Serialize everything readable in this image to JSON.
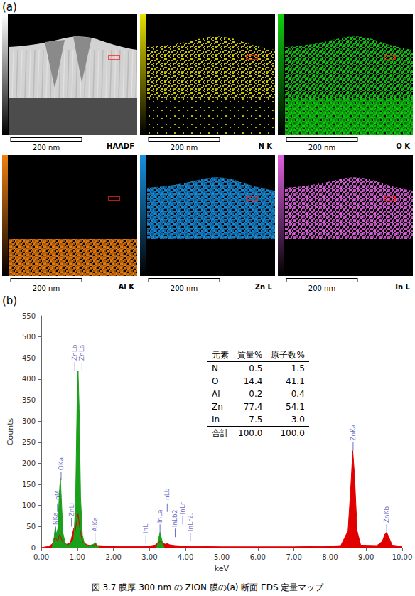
{
  "panel_a": {
    "label": "(a)",
    "scale_bar": "200 nm",
    "panels": [
      {
        "label": "HAADF",
        "color": "#ffffff"
      },
      {
        "label": "N K",
        "color": "#e8e000"
      },
      {
        "label": "O K",
        "color": "#10d010"
      },
      {
        "label": "Al K",
        "color": "#f08010"
      },
      {
        "label": "Zn L",
        "color": "#1890e0"
      },
      {
        "label": "In L",
        "color": "#e060e0"
      }
    ]
  },
  "chart_data": {
    "label": "(b)",
    "type": "area",
    "x_label": "keV",
    "y_label": "Counts",
    "xlim": [
      0,
      10
    ],
    "xticks": [
      {
        "value": 0,
        "label": "0.00"
      },
      {
        "value": 1,
        "label": "1.00"
      },
      {
        "value": 2,
        "label": "2.00"
      },
      {
        "value": 3,
        "label": "3.00"
      },
      {
        "value": 4,
        "label": "4.00"
      },
      {
        "value": 5,
        "label": "5.00"
      },
      {
        "value": 6,
        "label": "6.00"
      },
      {
        "value": 7,
        "label": "7.00"
      },
      {
        "value": 8,
        "label": "8.00"
      },
      {
        "value": 9,
        "label": "9.00"
      },
      {
        "value": 10,
        "label": "10.00"
      }
    ],
    "ylim": [
      0,
      550
    ],
    "yticks": [
      0,
      50,
      100,
      150,
      200,
      250,
      300,
      350,
      400,
      450,
      500,
      550
    ],
    "grid": false,
    "series": [
      {
        "color": "#e00000",
        "x": [
          0.0,
          0.2,
          0.3,
          0.34,
          0.38,
          0.42,
          0.46,
          0.5,
          0.54,
          0.6,
          0.7,
          0.8,
          0.86,
          0.9,
          0.94,
          0.98,
          1.02,
          1.08,
          1.15,
          1.3,
          1.45,
          1.5,
          1.55,
          1.8,
          2.2,
          2.8,
          3.0,
          3.15,
          3.25,
          3.3,
          3.36,
          3.45,
          3.5,
          3.55,
          3.7,
          3.9,
          4.2,
          5.0,
          6.0,
          7.0,
          7.8,
          8.3,
          8.5,
          8.58,
          8.63,
          8.68,
          8.75,
          8.85,
          9.3,
          9.45,
          9.52,
          9.57,
          9.63,
          9.72,
          10.0
        ],
        "values": [
          0,
          3,
          8,
          15,
          25,
          20,
          15,
          30,
          25,
          12,
          8,
          10,
          30,
          45,
          40,
          60,
          80,
          40,
          12,
          6,
          5,
          8,
          5,
          4,
          3,
          3,
          4,
          6,
          12,
          15,
          10,
          8,
          10,
          7,
          5,
          4,
          3,
          2,
          2,
          2,
          3,
          5,
          40,
          150,
          230,
          170,
          40,
          6,
          5,
          15,
          32,
          36,
          25,
          6,
          3
        ]
      },
      {
        "color": "#1aa01a",
        "x": [
          0.3,
          0.36,
          0.39,
          0.42,
          0.46,
          0.5,
          0.53,
          0.56,
          0.6,
          0.66,
          0.72,
          0.8,
          0.9,
          0.95,
          1.0,
          1.02,
          1.05,
          1.09,
          1.14,
          1.2,
          1.3,
          1.45,
          1.49,
          1.53,
          1.6,
          2.4,
          3.2,
          3.26,
          3.29,
          3.33,
          3.4
        ],
        "values": [
          0,
          25,
          50,
          32,
          45,
          125,
          165,
          110,
          35,
          12,
          5,
          8,
          20,
          100,
          380,
          420,
          330,
          120,
          30,
          8,
          4,
          8,
          13,
          8,
          0,
          null,
          0,
          25,
          36,
          22,
          0
        ]
      }
    ],
    "annotations": [
      {
        "text": "NKa",
        "x": 0.39,
        "y": 40
      },
      {
        "text": "InM",
        "x": 0.45,
        "y": 95
      },
      {
        "text": "OKa",
        "x": 0.55,
        "y": 170
      },
      {
        "text": "ZnLl",
        "x": 0.84,
        "y": 60
      },
      {
        "text": "ZnLb",
        "x": 0.93,
        "y": 430
      },
      {
        "text": "ZnLa",
        "x": 1.13,
        "y": 430
      },
      {
        "text": "AlKa",
        "x": 1.49,
        "y": 25
      },
      {
        "text": "InLl",
        "x": 2.9,
        "y": 20
      },
      {
        "text": "InLa",
        "x": 3.29,
        "y": 45
      },
      {
        "text": "InLb",
        "x": 3.49,
        "y": 95
      },
      {
        "text": "InLb2",
        "x": 3.71,
        "y": 35
      },
      {
        "text": "InLr",
        "x": 3.92,
        "y": 65
      },
      {
        "text": "InLr2.",
        "x": 4.13,
        "y": 25
      },
      {
        "text": "ZnKa",
        "x": 8.64,
        "y": 240
      },
      {
        "text": "ZnKb",
        "x": 9.57,
        "y": 45
      }
    ]
  },
  "table": {
    "header": [
      "元素",
      "質量%",
      "原子数%"
    ],
    "rows": [
      [
        "N",
        "0.5",
        "1.5"
      ],
      [
        "O",
        "14.4",
        "41.1"
      ],
      [
        "Al",
        "0.2",
        "0.4"
      ],
      [
        "Zn",
        "77.4",
        "54.1"
      ],
      [
        "In",
        "7.5",
        "3.0"
      ],
      [
        "合計",
        "100.0",
        "100.0"
      ]
    ]
  },
  "caption": "図 3.7 膜厚 300 nm の ZION 膜の(a) 断面 EDS 定量マップ"
}
